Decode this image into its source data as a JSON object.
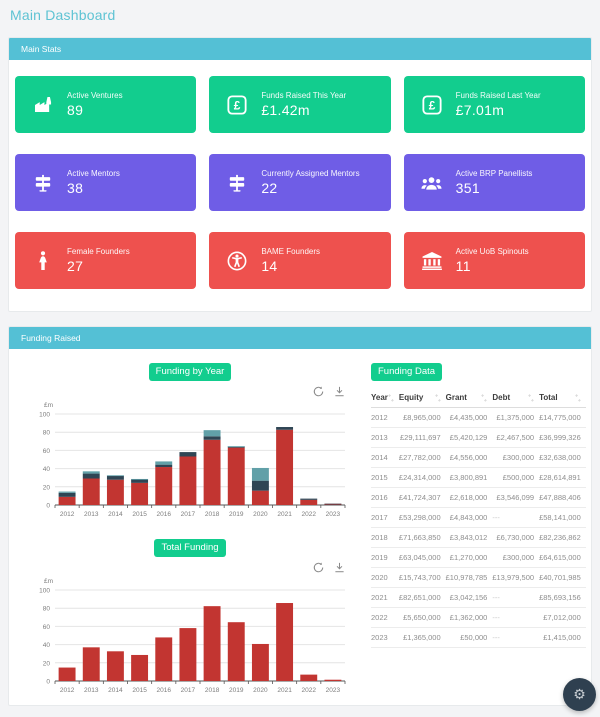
{
  "page_title": "Main Dashboard",
  "colors": {
    "green": "#12cd8e",
    "purple": "#6f5de6",
    "red": "#ee514e",
    "panel_header": "#54c0d5",
    "chart_equity": "#c23531",
    "chart_grant": "#2f4554",
    "chart_debt": "#61a0a8",
    "fab": "#2f4050"
  },
  "main_stats": {
    "header": "Main Stats",
    "cards": [
      {
        "label": "Active Ventures",
        "value": "89",
        "color": "green",
        "icon": "factory-icon"
      },
      {
        "label": "Funds Raised This Year",
        "value": "£1.42m",
        "color": "green",
        "icon": "pound-icon"
      },
      {
        "label": "Funds Raised Last Year",
        "value": "£7.01m",
        "color": "green",
        "icon": "pound-icon"
      },
      {
        "label": "Active Mentors",
        "value": "38",
        "color": "purple",
        "icon": "signpost-icon"
      },
      {
        "label": "Currently Assigned Mentors",
        "value": "22",
        "color": "purple",
        "icon": "signpost-icon"
      },
      {
        "label": "Active BRP Panellists",
        "value": "351",
        "color": "purple",
        "icon": "users-icon"
      },
      {
        "label": "Female Founders",
        "value": "27",
        "color": "red",
        "icon": "female-icon"
      },
      {
        "label": "BAME Founders",
        "value": "14",
        "color": "red",
        "icon": "accessibility-icon"
      },
      {
        "label": "Active UoB Spinouts",
        "value": "11",
        "color": "red",
        "icon": "university-icon"
      }
    ]
  },
  "funding": {
    "header": "Funding Raised",
    "chart1_title": "Funding by Year",
    "chart2_title": "Total Funding",
    "table_title": "Funding Data",
    "table": {
      "columns": [
        "Year",
        "Equity",
        "Grant",
        "Debt",
        "Total"
      ],
      "rows": [
        [
          "2012",
          "£8,965,000",
          "£4,435,000",
          "£1,375,000",
          "£14,775,000"
        ],
        [
          "2013",
          "£29,111,697",
          "£5,420,129",
          "£2,467,500",
          "£36,999,326"
        ],
        [
          "2014",
          "£27,782,000",
          "£4,556,000",
          "£300,000",
          "£32,638,000"
        ],
        [
          "2015",
          "£24,314,000",
          "£3,800,891",
          "£500,000",
          "£28,614,891"
        ],
        [
          "2016",
          "£41,724,307",
          "£2,618,000",
          "£3,546,099",
          "£47,888,406"
        ],
        [
          "2017",
          "£53,298,000",
          "£4,843,000",
          "---",
          "£58,141,000"
        ],
        [
          "2018",
          "£71,663,850",
          "£3,843,012",
          "£6,730,000",
          "£82,236,862"
        ],
        [
          "2019",
          "£63,045,000",
          "£1,270,000",
          "£300,000",
          "£64,615,000"
        ],
        [
          "2020",
          "£15,743,700",
          "£10,978,785",
          "£13,979,500",
          "£40,701,985"
        ],
        [
          "2021",
          "£82,651,000",
          "£3,042,156",
          "---",
          "£85,693,156"
        ],
        [
          "2022",
          "£5,650,000",
          "£1,362,000",
          "---",
          "£7,012,000"
        ],
        [
          "2023",
          "£1,365,000",
          "£50,000",
          "---",
          "£1,415,000"
        ]
      ]
    }
  },
  "chart_data": [
    {
      "type": "bar",
      "stacked": true,
      "name": "funding-by-year-chart",
      "title": "Funding by Year",
      "categories": [
        "2012",
        "2013",
        "2014",
        "2015",
        "2016",
        "2017",
        "2018",
        "2019",
        "2020",
        "2021",
        "2022",
        "2023"
      ],
      "series": [
        {
          "name": "Equity",
          "color": "#c23531",
          "values": [
            8.965,
            29.112,
            27.782,
            24.314,
            41.724,
            53.298,
            71.664,
            63.045,
            15.744,
            82.651,
            5.65,
            1.365
          ]
        },
        {
          "name": "Grant",
          "color": "#2f4554",
          "values": [
            4.435,
            5.42,
            4.556,
            3.801,
            2.618,
            4.843,
            3.843,
            1.27,
            10.979,
            3.042,
            1.362,
            0.05
          ]
        },
        {
          "name": "Debt",
          "color": "#61a0a8",
          "values": [
            1.375,
            2.468,
            0.3,
            0.5,
            3.546,
            0,
            6.73,
            0.3,
            13.98,
            0,
            0,
            0
          ]
        }
      ],
      "ylabel": "£m",
      "ylim": [
        0,
        100
      ],
      "yticks": [
        0,
        20,
        40,
        60,
        80,
        100
      ],
      "grid": true,
      "legend": "none"
    },
    {
      "type": "bar",
      "stacked": false,
      "name": "total-funding-chart",
      "title": "Total Funding",
      "categories": [
        "2012",
        "2013",
        "2014",
        "2015",
        "2016",
        "2017",
        "2018",
        "2019",
        "2020",
        "2021",
        "2022",
        "2023"
      ],
      "series": [
        {
          "name": "Total",
          "color": "#c23531",
          "values": [
            14.775,
            36.999,
            32.638,
            28.615,
            47.888,
            58.141,
            82.237,
            64.615,
            40.702,
            85.693,
            7.012,
            1.415
          ]
        }
      ],
      "ylabel": "£m",
      "ylim": [
        0,
        100
      ],
      "yticks": [
        0,
        20,
        40,
        60,
        80,
        100
      ],
      "grid": true,
      "legend": "none"
    }
  ],
  "fab": {
    "icon": "gear-icon"
  }
}
